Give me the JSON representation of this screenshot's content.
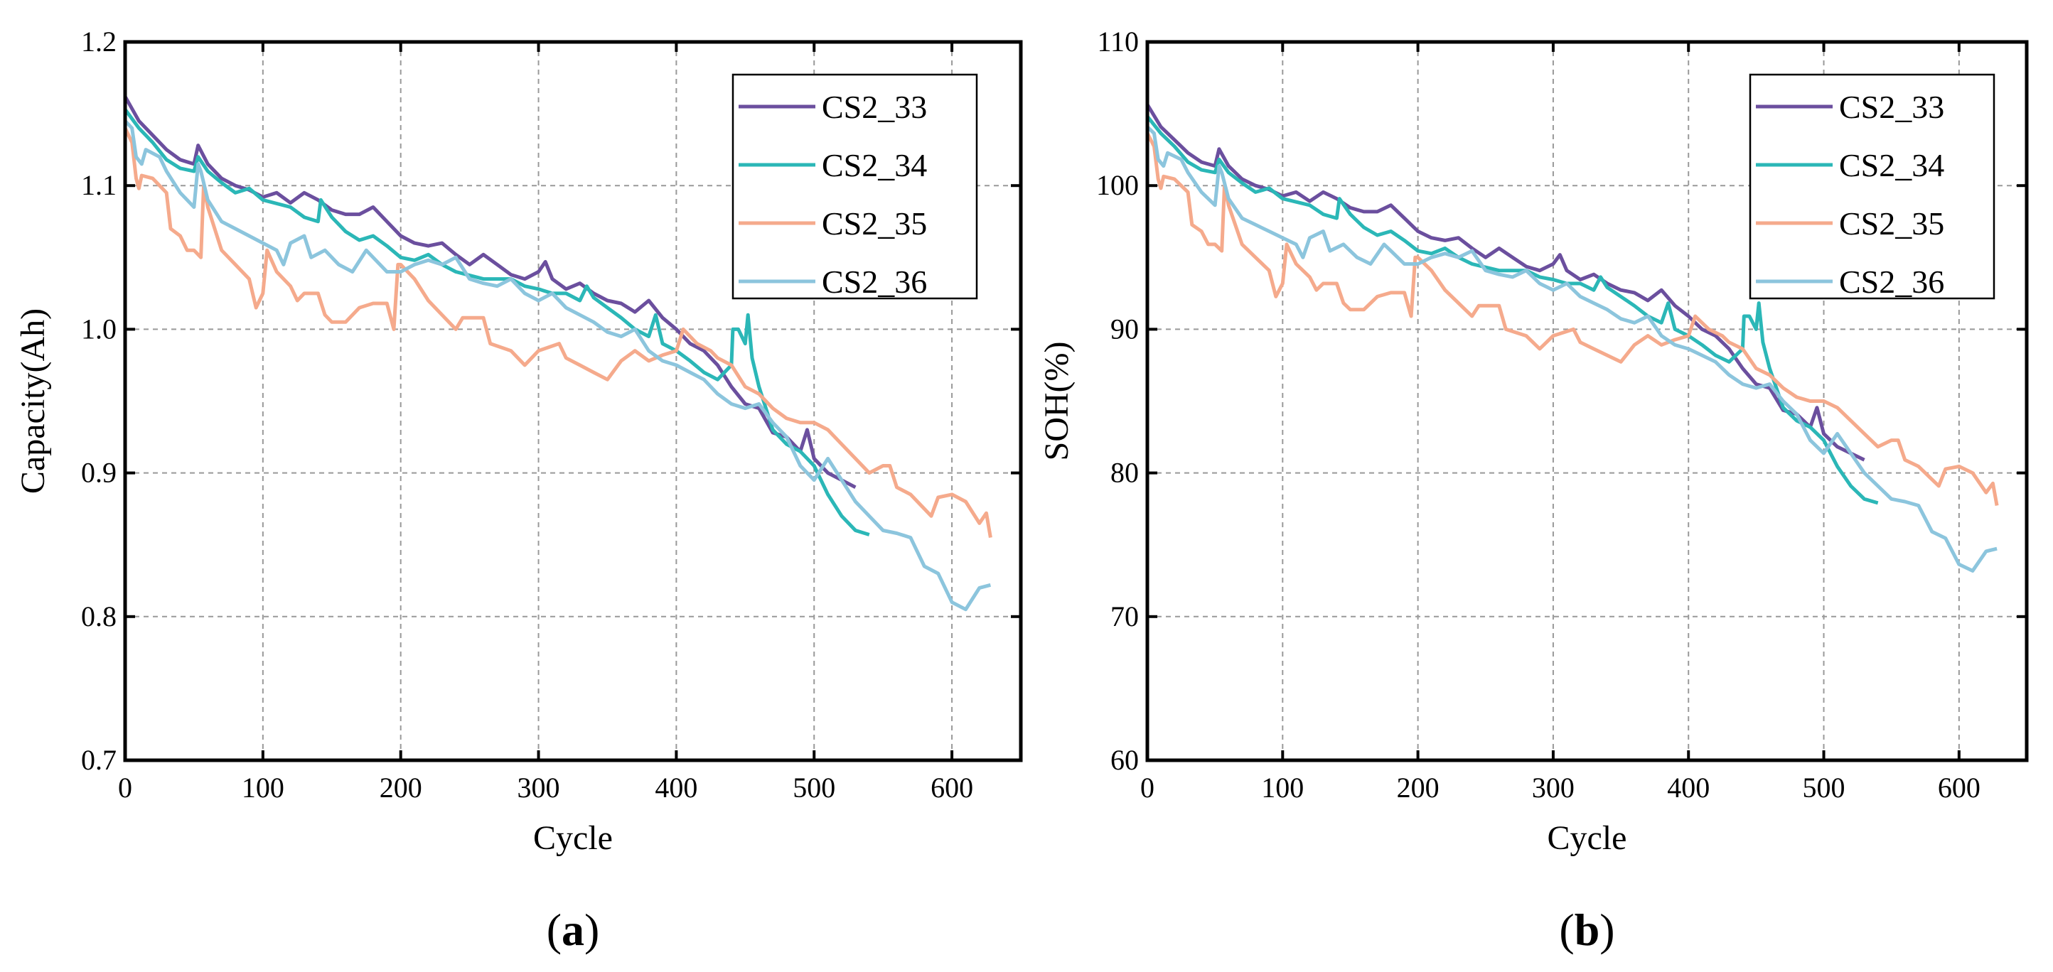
{
  "colors": {
    "CS2_33": "#6b4f9e",
    "CS2_34": "#2bb7b7",
    "CS2_35": "#f5aa8c",
    "CS2_36": "#8cc5dd"
  },
  "chart_data": [
    {
      "panel_label": "a",
      "type": "line",
      "xlabel": "Cycle",
      "ylabel": "Capacity(Ah)",
      "xlim": [
        0,
        650
      ],
      "ylim": [
        0.7,
        1.2
      ],
      "xticks": [
        0,
        100,
        200,
        300,
        400,
        500,
        600
      ],
      "yticks": [
        0.7,
        0.8,
        0.9,
        1.0,
        1.1,
        1.2
      ],
      "ytick_labels": [
        "0.7",
        "0.8",
        "0.9",
        "1.0",
        "1.1",
        "1.2"
      ],
      "grid": true,
      "legend": "top-right",
      "y_multiplier": 1,
      "series": [
        {
          "name": "CS2_33",
          "x": [
            0,
            10,
            20,
            30,
            40,
            50,
            53,
            60,
            70,
            80,
            90,
            100,
            110,
            120,
            130,
            140,
            150,
            160,
            170,
            180,
            190,
            200,
            210,
            220,
            230,
            240,
            250,
            260,
            270,
            280,
            290,
            300,
            305,
            310,
            320,
            330,
            340,
            350,
            360,
            370,
            380,
            390,
            400,
            410,
            420,
            430,
            440,
            450,
            460,
            470,
            480,
            490,
            495,
            500,
            510,
            520,
            530
          ],
          "y": [
            1.162,
            1.145,
            1.135,
            1.125,
            1.118,
            1.115,
            1.128,
            1.115,
            1.105,
            1.1,
            1.097,
            1.092,
            1.095,
            1.088,
            1.095,
            1.09,
            1.083,
            1.08,
            1.08,
            1.085,
            1.075,
            1.065,
            1.06,
            1.058,
            1.06,
            1.052,
            1.045,
            1.052,
            1.045,
            1.038,
            1.035,
            1.04,
            1.047,
            1.035,
            1.028,
            1.032,
            1.025,
            1.02,
            1.018,
            1.012,
            1.02,
            1.008,
            1.0,
            0.99,
            0.985,
            0.975,
            0.96,
            0.948,
            0.945,
            0.928,
            0.925,
            0.915,
            0.93,
            0.91,
            0.9,
            0.895,
            0.89
          ]
        },
        {
          "name": "CS2_34",
          "x": [
            0,
            10,
            20,
            30,
            40,
            50,
            53,
            60,
            70,
            80,
            90,
            100,
            120,
            130,
            140,
            142,
            150,
            160,
            170,
            180,
            190,
            200,
            210,
            220,
            230,
            240,
            260,
            280,
            290,
            300,
            310,
            320,
            330,
            335,
            340,
            350,
            360,
            370,
            380,
            385,
            390,
            400,
            410,
            420,
            430,
            440,
            441,
            445,
            450,
            452,
            455,
            460,
            470,
            480,
            490,
            500,
            510,
            520,
            530,
            540
          ],
          "y": [
            1.153,
            1.14,
            1.13,
            1.118,
            1.112,
            1.11,
            1.12,
            1.11,
            1.102,
            1.095,
            1.098,
            1.09,
            1.085,
            1.078,
            1.075,
            1.09,
            1.078,
            1.068,
            1.062,
            1.065,
            1.058,
            1.05,
            1.048,
            1.052,
            1.045,
            1.04,
            1.035,
            1.035,
            1.03,
            1.028,
            1.025,
            1.025,
            1.02,
            1.03,
            1.022,
            1.015,
            1.008,
            1.0,
            0.995,
            1.01,
            0.99,
            0.985,
            0.978,
            0.97,
            0.965,
            0.975,
            1.0,
            1.0,
            0.99,
            1.01,
            0.98,
            0.96,
            0.93,
            0.92,
            0.915,
            0.905,
            0.885,
            0.87,
            0.86,
            0.857
          ]
        },
        {
          "name": "CS2_35",
          "x": [
            0,
            5,
            8,
            10,
            12,
            20,
            30,
            33,
            40,
            45,
            50,
            55,
            57,
            60,
            70,
            80,
            90,
            95,
            100,
            103,
            110,
            120,
            125,
            130,
            140,
            145,
            150,
            160,
            170,
            180,
            190,
            195,
            198,
            200,
            210,
            220,
            230,
            240,
            245,
            260,
            265,
            280,
            290,
            300,
            315,
            320,
            330,
            340,
            350,
            360,
            370,
            380,
            390,
            400,
            405,
            415,
            425,
            430,
            440,
            450,
            460,
            470,
            480,
            490,
            500,
            510,
            520,
            530,
            540,
            550,
            555,
            560,
            570,
            580,
            585,
            590,
            600,
            610,
            620,
            625,
            628
          ],
          "y": [
            1.14,
            1.13,
            1.105,
            1.098,
            1.107,
            1.105,
            1.095,
            1.07,
            1.065,
            1.055,
            1.055,
            1.05,
            1.1,
            1.085,
            1.055,
            1.045,
            1.035,
            1.015,
            1.025,
            1.055,
            1.04,
            1.03,
            1.02,
            1.025,
            1.025,
            1.01,
            1.005,
            1.005,
            1.015,
            1.018,
            1.018,
            1.0,
            1.045,
            1.045,
            1.035,
            1.02,
            1.01,
            1.0,
            1.008,
            1.008,
            0.99,
            0.985,
            0.975,
            0.985,
            0.99,
            0.98,
            0.975,
            0.97,
            0.965,
            0.978,
            0.985,
            0.978,
            0.982,
            0.985,
            1.0,
            0.99,
            0.985,
            0.98,
            0.975,
            0.96,
            0.955,
            0.945,
            0.938,
            0.935,
            0.935,
            0.93,
            0.92,
            0.91,
            0.9,
            0.905,
            0.905,
            0.89,
            0.885,
            0.875,
            0.87,
            0.883,
            0.885,
            0.88,
            0.865,
            0.872,
            0.855
          ]
        },
        {
          "name": "CS2_36",
          "x": [
            0,
            5,
            8,
            12,
            15,
            25,
            30,
            40,
            50,
            53,
            55,
            60,
            70,
            80,
            90,
            100,
            110,
            115,
            120,
            130,
            135,
            145,
            155,
            165,
            175,
            180,
            190,
            200,
            210,
            220,
            230,
            240,
            250,
            260,
            270,
            280,
            290,
            300,
            310,
            320,
            330,
            340,
            350,
            360,
            370,
            380,
            390,
            400,
            410,
            420,
            430,
            440,
            450,
            460,
            470,
            480,
            490,
            500,
            510,
            520,
            530,
            540,
            550,
            560,
            570,
            580,
            590,
            600,
            610,
            620,
            628
          ],
          "y": [
            1.145,
            1.14,
            1.12,
            1.115,
            1.125,
            1.12,
            1.11,
            1.095,
            1.085,
            1.115,
            1.11,
            1.09,
            1.075,
            1.07,
            1.065,
            1.06,
            1.055,
            1.045,
            1.06,
            1.065,
            1.05,
            1.055,
            1.045,
            1.04,
            1.055,
            1.05,
            1.04,
            1.04,
            1.045,
            1.048,
            1.045,
            1.05,
            1.035,
            1.032,
            1.03,
            1.035,
            1.025,
            1.02,
            1.025,
            1.015,
            1.01,
            1.005,
            0.998,
            0.995,
            1.0,
            0.985,
            0.978,
            0.975,
            0.97,
            0.965,
            0.955,
            0.948,
            0.945,
            0.948,
            0.935,
            0.925,
            0.905,
            0.895,
            0.91,
            0.895,
            0.88,
            0.87,
            0.86,
            0.858,
            0.855,
            0.835,
            0.83,
            0.81,
            0.805,
            0.82,
            0.822
          ]
        }
      ]
    },
    {
      "panel_label": "b",
      "type": "line",
      "xlabel": "Cycle",
      "ylabel": "SOH(%)",
      "xlim": [
        0,
        650
      ],
      "ylim": [
        60,
        110
      ],
      "xticks": [
        0,
        100,
        200,
        300,
        400,
        500,
        600
      ],
      "yticks": [
        60,
        70,
        80,
        90,
        100,
        110
      ],
      "ytick_labels": [
        "60",
        "70",
        "80",
        "90",
        "100",
        "110"
      ],
      "grid": true,
      "legend": "top-right",
      "series_source": "same cycles as panel a, SOH values = capacity × y_multiplier",
      "y_multiplier": 90.91
    }
  ]
}
